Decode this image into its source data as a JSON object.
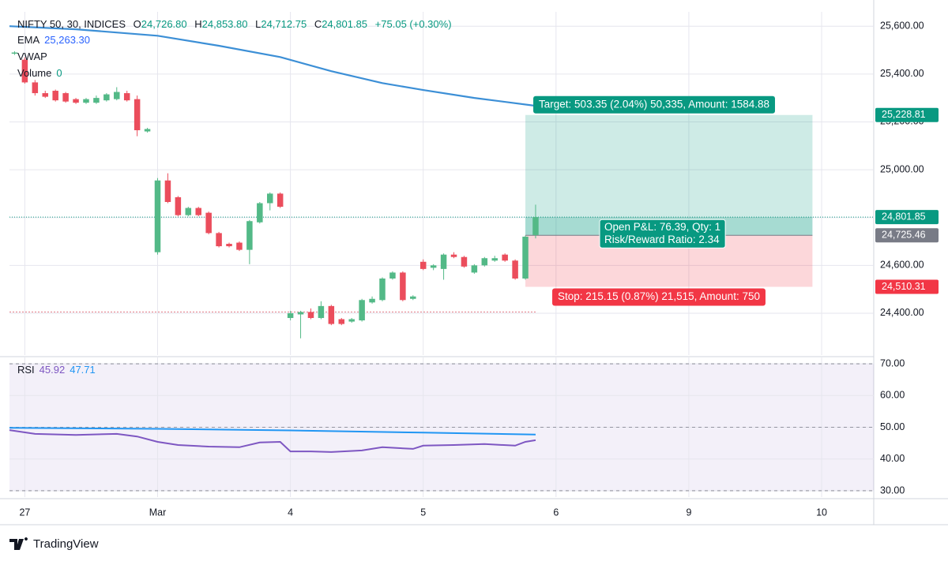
{
  "header": {
    "symbol": "NIFTY 50, 30, INDICES",
    "o_label": "O",
    "o": "24,726.80",
    "h_label": "H",
    "h": "24,853.80",
    "l_label": "L",
    "l": "24,712.75",
    "c_label": "C",
    "c": "24,801.85",
    "change": "+75.05 (+0.30%)"
  },
  "footer": {
    "brand": "TradingView"
  },
  "chart_data": [
    {
      "type": "candlestick",
      "xlim": [
        -1.5,
        83.1
      ],
      "ylim": [
        24225,
        25660
      ],
      "grid": true,
      "up_color": "#53b987",
      "down_color": "#eb4d5c",
      "xticks": [
        {
          "value": 0,
          "label": "27"
        },
        {
          "value": 13,
          "label": "Mar"
        },
        {
          "value": 26,
          "label": "4"
        },
        {
          "value": 39,
          "label": "5"
        },
        {
          "value": 52,
          "label": "6"
        },
        {
          "value": 65,
          "label": "9"
        },
        {
          "value": 78,
          "label": "10"
        }
      ],
      "yticks": [
        {
          "value": 24400,
          "label": "24,400.00"
        },
        {
          "value": 24600,
          "label": "24,600.00"
        },
        {
          "value": 24800,
          "label": "24,800.00"
        },
        {
          "value": 25000,
          "label": "25,000.00"
        },
        {
          "value": 25200,
          "label": "25,200.00"
        },
        {
          "value": 25400,
          "label": "25,400.00"
        },
        {
          "value": 25600,
          "label": "25,600.00"
        }
      ],
      "x": [
        -1,
        0,
        1,
        2,
        3,
        4,
        5,
        6,
        7,
        8,
        9,
        10,
        11,
        12,
        13,
        14,
        15,
        16,
        17,
        18,
        19,
        20,
        21,
        22,
        23,
        24,
        25,
        26,
        27,
        28,
        29,
        30,
        31,
        32,
        33,
        34,
        35,
        36,
        37,
        38,
        39,
        40,
        41,
        42,
        43,
        44,
        45,
        46,
        47,
        48,
        49,
        50
      ],
      "open": [
        25485,
        25460,
        25365,
        25320,
        25330,
        25320,
        25295,
        25280,
        25280,
        25290,
        25295,
        25320,
        25295,
        25160,
        24655,
        24955,
        24885,
        24810,
        24840,
        24820,
        24735,
        24690,
        24695,
        24665,
        24780,
        24860,
        24900,
        24380,
        24395,
        24405,
        24380,
        24430,
        24375,
        24365,
        24370,
        24445,
        24455,
        24545,
        24570,
        24460,
        24615,
        24590,
        24585,
        24645,
        24635,
        24570,
        24600,
        24620,
        24645,
        24620,
        24545,
        24726.8
      ],
      "high": [
        25495,
        25470,
        25375,
        25330,
        25335,
        25325,
        25300,
        25300,
        25310,
        25320,
        25345,
        25330,
        25310,
        25175,
        24965,
        24985,
        24890,
        24845,
        24845,
        24825,
        24740,
        24695,
        24700,
        24790,
        24865,
        24905,
        24905,
        24410,
        24410,
        24420,
        24450,
        24435,
        24380,
        24380,
        24460,
        24470,
        24550,
        24575,
        24575,
        24475,
        24625,
        24605,
        24650,
        24655,
        24640,
        24605,
        24635,
        24640,
        24650,
        24625,
        24725,
        24853.8
      ],
      "low": [
        25480,
        25360,
        25310,
        25300,
        25285,
        25280,
        25275,
        25275,
        25275,
        25285,
        25290,
        25285,
        25140,
        25155,
        24645,
        24860,
        24805,
        24805,
        24805,
        24730,
        24675,
        24675,
        24660,
        24605,
        24775,
        24830,
        24840,
        24370,
        24295,
        24375,
        24375,
        24350,
        24350,
        24360,
        24365,
        24440,
        24450,
        24540,
        24450,
        24455,
        24580,
        24580,
        24540,
        24630,
        24590,
        24565,
        24595,
        24615,
        24615,
        24540,
        24540,
        24712.75
      ],
      "close": [
        25490,
        25365,
        25320,
        25305,
        25290,
        25285,
        25280,
        25295,
        25300,
        25315,
        25325,
        25290,
        25165,
        25170,
        24955,
        24865,
        24810,
        24840,
        24810,
        24735,
        24680,
        24680,
        24665,
        24785,
        24860,
        24900,
        24845,
        24400,
        24405,
        24380,
        24430,
        24355,
        24355,
        24375,
        24455,
        24460,
        24545,
        24570,
        24455,
        24470,
        24585,
        24600,
        24645,
        24635,
        24595,
        24600,
        24630,
        24630,
        24620,
        24545,
        24720,
        24801.85
      ],
      "legend": [
        {
          "name": "EMA",
          "reading": "25,263.30"
        },
        {
          "name": "VWAP"
        },
        {
          "name": "Volume",
          "reading": "0"
        }
      ],
      "overlays": [
        {
          "name": "EMA",
          "color": "#3c8fd6",
          "x": [
            -1.5,
            5,
            13,
            19,
            25,
            30,
            35,
            39,
            44,
            50
          ],
          "values": [
            25600,
            25587,
            25560,
            25518,
            25471,
            25412,
            25362,
            25333,
            25300,
            25267
          ]
        },
        {
          "name": "VWAP",
          "color": "#e57a86",
          "dashed": true,
          "x": [
            -1.5,
            50
          ],
          "values": [
            24405,
            24405
          ]
        }
      ],
      "position": {
        "x_start": 49,
        "x_end": 77.1,
        "entry": 24725.46,
        "target": 25228.81,
        "stop": 24510.31,
        "target_label": "Target: 503.35 (2.04%) 50,335, Amount: 1584.88",
        "pnl_label": "Open P&L: 76.39, Qty: 1",
        "ratio_label": "Risk/Reward Ratio: 2.34",
        "stop_label": "Stop: 215.15 (0.87%) 21,515, Amount: 750"
      },
      "price_tags": [
        {
          "value": 25228.81,
          "label": "25,228.81",
          "color": "#089981"
        },
        {
          "value": 24801.85,
          "label": "24,801.85",
          "color": "#089981",
          "line": true
        },
        {
          "value": 24725.46,
          "label": "24,725.46",
          "color": "#787b86"
        },
        {
          "value": 24510.31,
          "label": "24,510.31",
          "color": "#f23645"
        }
      ]
    },
    {
      "type": "line",
      "title": "RSI",
      "xlim": [
        -1.5,
        83.1
      ],
      "ylim": [
        28,
        72
      ],
      "band": [
        30,
        70
      ],
      "dashed_levels": [
        30,
        50,
        70
      ],
      "grid": true,
      "yticks": [
        {
          "value": 30,
          "label": "30.00"
        },
        {
          "value": 40,
          "label": "40.00"
        },
        {
          "value": 50,
          "label": "50.00"
        },
        {
          "value": 60,
          "label": "60.00"
        },
        {
          "value": 70,
          "label": "70.00"
        }
      ],
      "xticks": [
        {
          "value": 0,
          "label": "27"
        },
        {
          "value": 13,
          "label": "Mar"
        },
        {
          "value": 26,
          "label": "4"
        },
        {
          "value": 39,
          "label": "5"
        },
        {
          "value": 52,
          "label": "6"
        },
        {
          "value": 65,
          "label": "9"
        },
        {
          "value": 78,
          "label": "10"
        }
      ],
      "series": [
        {
          "color": "#7e57c2",
          "value_label": "45.92",
          "x": [
            -1.5,
            1,
            5,
            9,
            11,
            13,
            15,
            18,
            21,
            23,
            25,
            26,
            28,
            30,
            33,
            35,
            38,
            39,
            42,
            45,
            48,
            49,
            50
          ],
          "values": [
            49.1,
            47.9,
            47.6,
            47.9,
            47.1,
            45.4,
            44.4,
            43.9,
            43.7,
            45.2,
            45.4,
            42.4,
            42.4,
            42.2,
            42.7,
            43.7,
            43.2,
            44.2,
            44.4,
            44.7,
            44.2,
            45.4,
            45.92
          ]
        },
        {
          "color": "#2196f3",
          "value_label": "47.71",
          "x": [
            -1.5,
            13,
            26,
            39,
            50
          ],
          "values": [
            49.8,
            49.5,
            49.0,
            48.3,
            47.71
          ]
        }
      ]
    }
  ]
}
